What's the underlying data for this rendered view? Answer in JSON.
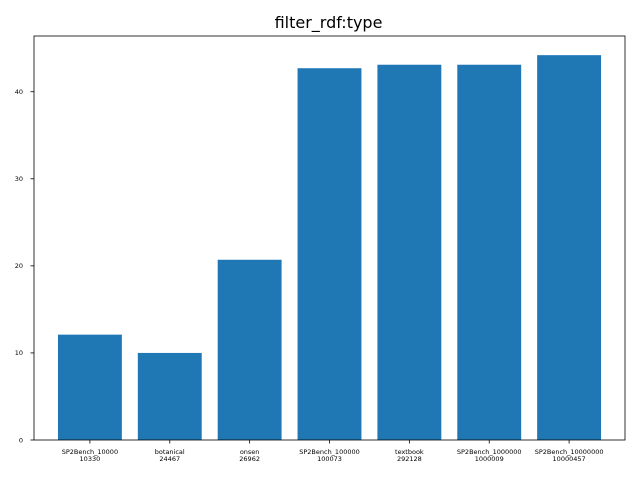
{
  "chart_data": {
    "type": "bar",
    "title": "filter_rdf:type",
    "xlabel": "",
    "ylabel": "",
    "categories": [
      [
        "SP2Bench_10000",
        "10330"
      ],
      [
        "botanical",
        "24467"
      ],
      [
        "onsen",
        "26962"
      ],
      [
        "SP2Bench_100000",
        "100073"
      ],
      [
        "textbook",
        "292128"
      ],
      [
        "SP2Bench_1000000",
        "1000009"
      ],
      [
        "SP2Bench_10000000",
        "10000457"
      ]
    ],
    "values": [
      12.1,
      10.0,
      20.7,
      42.7,
      43.1,
      43.1,
      44.2
    ],
    "ylim": [
      0,
      46.4
    ],
    "yticks": [
      0,
      10,
      20,
      30,
      40
    ],
    "grid": false,
    "color": "#1f77b4"
  }
}
